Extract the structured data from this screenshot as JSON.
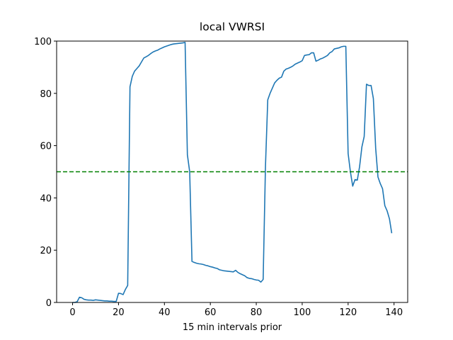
{
  "chart_data": {
    "type": "line",
    "title": "local VWRSI",
    "x_label": "15 min intervals prior",
    "x": [
      0,
      1,
      2,
      3,
      4,
      5,
      6,
      7,
      8,
      9,
      10,
      11,
      12,
      13,
      14,
      15,
      16,
      17,
      18,
      19,
      20,
      21,
      22,
      23,
      24,
      25,
      26,
      27,
      28,
      29,
      30,
      31,
      32,
      33,
      34,
      35,
      36,
      37,
      38,
      39,
      40,
      41,
      42,
      43,
      44,
      45,
      46,
      47,
      48,
      49,
      50,
      51,
      52,
      53,
      54,
      55,
      56,
      57,
      58,
      59,
      60,
      61,
      62,
      63,
      64,
      65,
      66,
      67,
      68,
      69,
      70,
      71,
      72,
      73,
      74,
      75,
      76,
      77,
      78,
      79,
      80,
      81,
      82,
      83,
      84,
      85,
      86,
      87,
      88,
      89,
      90,
      91,
      92,
      93,
      94,
      95,
      96,
      97,
      98,
      99,
      100,
      101,
      102,
      103,
      104,
      105,
      106,
      107,
      108,
      109,
      110,
      111,
      112,
      113,
      114,
      115,
      116,
      117,
      118,
      119,
      120,
      121,
      122,
      123,
      124,
      125,
      126,
      127,
      128,
      129,
      130,
      131,
      132,
      133,
      134,
      135,
      136,
      137,
      138,
      139
    ],
    "series": [
      {
        "color": "#1f77b4",
        "values": [
          0,
          0,
          0.3,
          2,
          1.8,
          1.2,
          1.0,
          0.9,
          0.9,
          0.8,
          1.0,
          0.9,
          0.8,
          0.7,
          0.6,
          0.6,
          0.5,
          0.5,
          0.4,
          0.4,
          3.5,
          3.4,
          3.0,
          5.0,
          6.5,
          82.5,
          86.5,
          88.5,
          89.5,
          90.5,
          92,
          93.5,
          94,
          94.5,
          95.2,
          95.8,
          96.2,
          96.5,
          97,
          97.4,
          97.8,
          98.1,
          98.4,
          98.7,
          98.9,
          99.0,
          99.1,
          99.2,
          99.3,
          99.5,
          56.5,
          50,
          15.7,
          15.3,
          15.0,
          14.8,
          14.7,
          14.5,
          14.2,
          14.0,
          13.7,
          13.5,
          13.2,
          13.0,
          12.5,
          12.3,
          12.1,
          12.0,
          11.9,
          11.8,
          11.7,
          12.3,
          11.5,
          11.0,
          10.6,
          10.2,
          9.5,
          9.2,
          9.1,
          8.8,
          8.6,
          8.5,
          7.8,
          8.8,
          52,
          77.5,
          80,
          82,
          84,
          85,
          85.8,
          86.2,
          88.5,
          89.3,
          89.6,
          90,
          90.5,
          91.2,
          91.6,
          92,
          92.5,
          94.5,
          94.7,
          94.8,
          95.5,
          95.5,
          92.3,
          92.7,
          93.2,
          93.5,
          94,
          94.5,
          95.5,
          96,
          97,
          97.2,
          97.4,
          97.8,
          98,
          98,
          57,
          50,
          44.5,
          47,
          46.8,
          52,
          59.5,
          63.5,
          83.5,
          83,
          83,
          78,
          59,
          48,
          45.5,
          43.5,
          37,
          35,
          32,
          26.5
        ]
      }
    ],
    "hline": {
      "y": 50,
      "color": "#008000",
      "dashed": true
    },
    "xlim": [
      -6.95,
      145.95
    ],
    "xticks": [
      0,
      20,
      40,
      60,
      80,
      100,
      120,
      140
    ],
    "ylim": [
      0,
      100
    ],
    "yticks": [
      0,
      20,
      40,
      60,
      80,
      100
    ]
  }
}
